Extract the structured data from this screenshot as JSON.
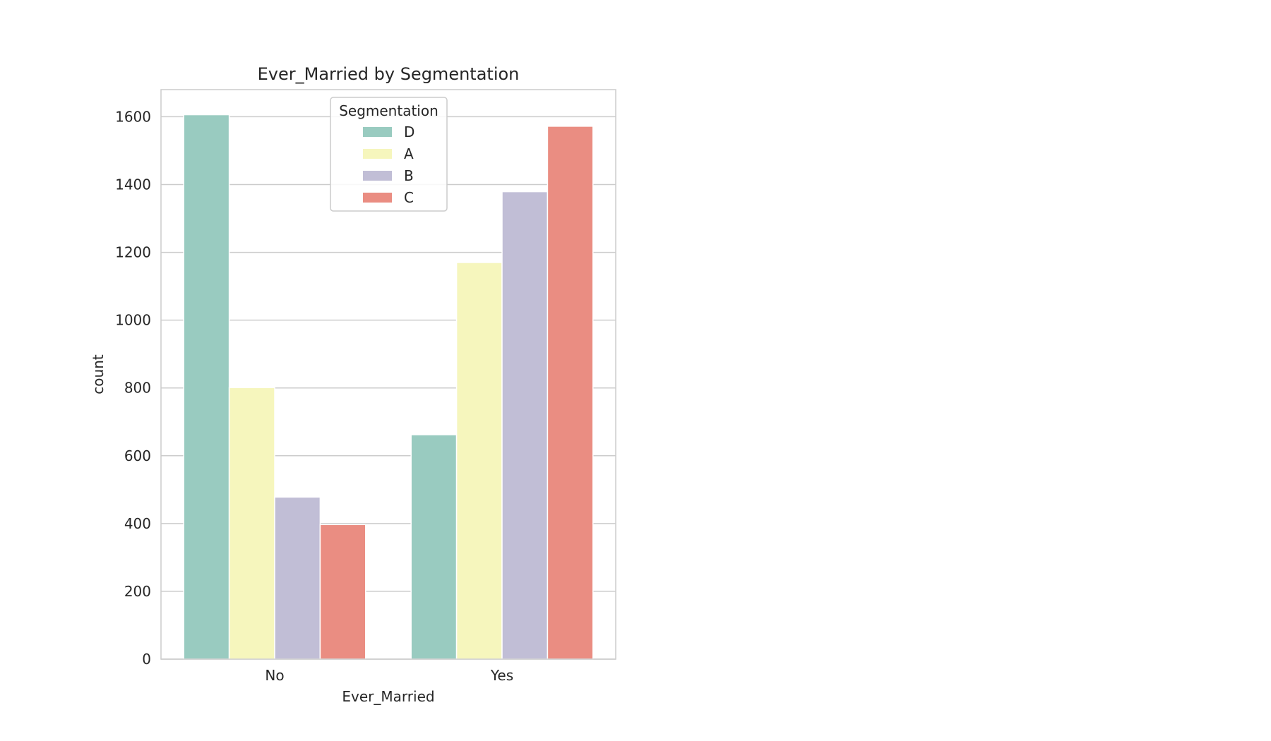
{
  "chart_data": {
    "type": "bar",
    "title": "Ever_Married by Segmentation",
    "xlabel": "Ever_Married",
    "ylabel": "count",
    "categories": [
      "No",
      "Yes"
    ],
    "ylim": [
      0,
      1680
    ],
    "yticks": [
      0,
      200,
      400,
      600,
      800,
      1000,
      1200,
      1400,
      1600
    ],
    "grid": true,
    "legend": {
      "title": "Segmentation",
      "position": "top-center"
    },
    "series": [
      {
        "name": "D",
        "color": "#99cbc0",
        "values": [
          1606,
          662
        ]
      },
      {
        "name": "A",
        "color": "#f6f6bd",
        "values": [
          801,
          1170
        ]
      },
      {
        "name": "B",
        "color": "#c1bed6",
        "values": [
          478,
          1379
        ]
      },
      {
        "name": "C",
        "color": "#ea8d82",
        "values": [
          397,
          1572
        ]
      }
    ]
  }
}
